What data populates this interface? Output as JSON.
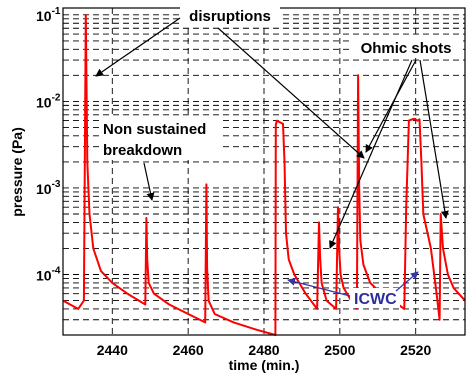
{
  "chart_data": {
    "type": "line",
    "title": "",
    "xlabel": "time (min.)",
    "ylabel": "pressure (Pa)",
    "xlim": [
      2427,
      2533
    ],
    "ylim": [
      2e-05,
      0.12
    ],
    "yscale": "log",
    "grid": true,
    "xticks": [
      "2440",
      "2460",
      "2480",
      "2500",
      "2520"
    ],
    "yticks": [
      {
        "mantissa": "10",
        "exp": "-1"
      },
      {
        "mantissa": "10",
        "exp": "-2"
      },
      {
        "mantissa": "10",
        "exp": "-3"
      },
      {
        "mantissa": "10",
        "exp": "-4"
      }
    ],
    "series": [
      {
        "color": "#ff0000",
        "x": [
          2427,
          2431,
          2432.5,
          2433,
          2433.4,
          2434,
          2435,
          2437,
          2440,
          2444,
          2448.7,
          2449,
          2449.2,
          2449.6,
          2451,
          2455,
          2460,
          2464.5,
          2464.8,
          2465,
          2465.4,
          2467,
          2472,
          2478,
          2483,
          2483.1,
          2483.4,
          2484,
          2485,
          2485.4,
          2485.8,
          2486.5,
          2488,
          2491,
          2494,
          2494.5,
          2494.8,
          2495.2,
          2496.5,
          2499,
          2499.5,
          2499.8,
          2500.2,
          2501,
          2503,
          2504.5,
          2504.8,
          2505.1,
          2505.4,
          2506.2,
          2508,
          2511,
          2514,
          2517,
          2517.5,
          2518.2,
          2519.5,
          2520.5,
          2521,
          2521.5,
          2522,
          2524,
          2525.5,
          2526.3,
          2526.6,
          2527.2,
          2528.5,
          2530,
          2533
        ],
        "y": [
          5e-05,
          4e-05,
          5e-05,
          0.1,
          0.002,
          0.0005,
          0.0002,
          0.00011,
          8e-05,
          6e-05,
          4.5e-05,
          0.00045,
          0.00015,
          8e-05,
          6e-05,
          4.5e-05,
          3.5e-05,
          2.8e-05,
          0.0011,
          0.00012,
          5e-05,
          3.5e-05,
          2.8e-05,
          2.3e-05,
          2e-05,
          0.0054,
          0.006,
          0.0058,
          0.0055,
          0.002,
          0.0003,
          0.00015,
          0.0001,
          6e-05,
          4e-05,
          0.0004,
          0.00016,
          8e-05,
          5e-05,
          4e-05,
          0.0006,
          0.0002,
          0.0001,
          7e-05,
          5e-05,
          4e-05,
          0.02,
          0.001,
          0.00025,
          0.00013,
          8e-05,
          6e-05,
          5e-05,
          4e-05,
          0.0006,
          0.006,
          0.0063,
          0.006,
          0.0062,
          0.002,
          0.0005,
          0.0002,
          6e-05,
          3e-05,
          0.0005,
          0.0002,
          0.0001,
          7e-05,
          5e-05
        ]
      }
    ],
    "annotations": {
      "disruptions": "disruptions",
      "ohmic": "Ohmic shots",
      "nonsustained_1": "Non sustained",
      "nonsustained_2": "breakdown",
      "icwc": "ICWC"
    }
  }
}
